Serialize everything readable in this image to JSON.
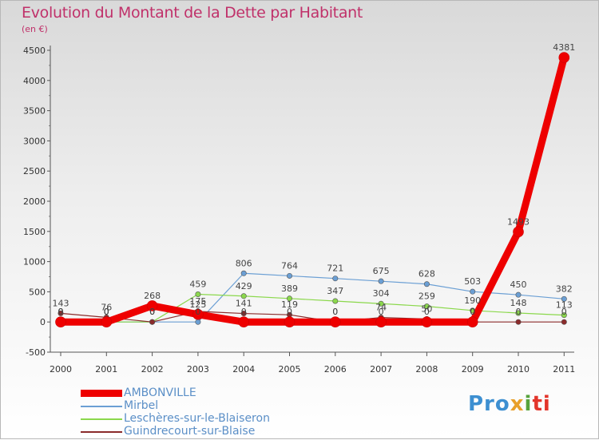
{
  "header": {
    "title": "Evolution du Montant de la Dette par Habitant",
    "unit": "(en €)"
  },
  "logo": {
    "parts": [
      "Pro",
      "x",
      "i",
      "ti"
    ]
  },
  "chart_data": {
    "type": "line",
    "title": "Evolution du Montant de la Dette par Habitant",
    "subtitle": "(en €)",
    "x": [
      "2000",
      "2001",
      "2002",
      "2003",
      "2004",
      "2005",
      "2006",
      "2007",
      "2008",
      "2009",
      "2010",
      "2011"
    ],
    "ylim": [
      -500,
      4500
    ],
    "yticks": [
      -500,
      0,
      500,
      1000,
      1500,
      2000,
      2500,
      3000,
      3500,
      4000,
      4500
    ],
    "grid": false,
    "legend_position": "bottom-left",
    "series": [
      {
        "name": "AMBONVILLE",
        "color": "#ee0000",
        "values": [
          0,
          0,
          268,
          125,
          0,
          0,
          0,
          0,
          0,
          0,
          1493,
          4381
        ],
        "labels": [
          "0",
          "0",
          "268",
          "125",
          "0",
          "0",
          "0",
          "0",
          "0",
          "0",
          "1493",
          "4381"
        ]
      },
      {
        "name": "Mirbel",
        "color": "#6b9fd4",
        "values": [
          0,
          0,
          0,
          0,
          806,
          764,
          721,
          675,
          628,
          503,
          450,
          382
        ],
        "labels": [
          "0",
          "0",
          "0",
          "0",
          "806",
          "764",
          "721",
          "675",
          "628",
          "503",
          "450",
          "382"
        ]
      },
      {
        "name": "Leschères-sur-le-Blaiseron",
        "color": "#8bd84c",
        "values": [
          0,
          0,
          0,
          459,
          429,
          389,
          347,
          304,
          259,
          190,
          148,
          113
        ],
        "labels": [
          "0",
          "0",
          "0",
          "459",
          "429",
          "389",
          "347",
          "304",
          "259",
          "190",
          "148",
          "113"
        ]
      },
      {
        "name": "Guindrecourt-sur-Blaise",
        "color": "#8b2b2b",
        "values": [
          143,
          76,
          0,
          175,
          141,
          119,
          0,
          74,
          50,
          0,
          0,
          0
        ],
        "labels": [
          "143",
          "76",
          "0",
          "175",
          "141",
          "119",
          "0",
          "74",
          "50",
          "0",
          "0",
          "0"
        ]
      }
    ]
  }
}
